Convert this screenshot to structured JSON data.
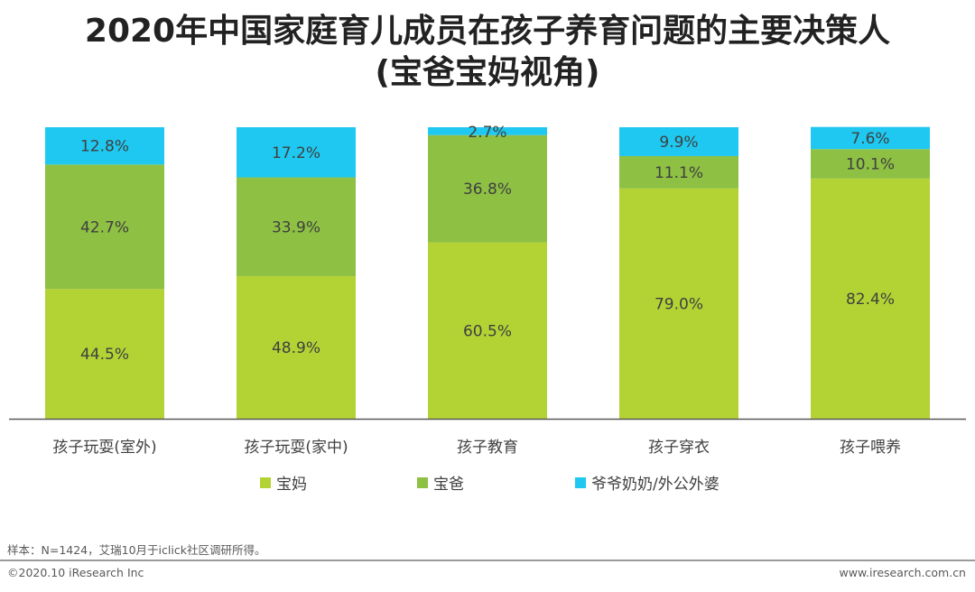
{
  "title": {
    "line1": "2020年中国家庭育儿成员在孩子养育问题的主要决策人",
    "line2": "(宝爸宝妈视角)"
  },
  "chart_data": {
    "type": "bar",
    "stacked": true,
    "categories": [
      "孩子玩耍(室外)",
      "孩子玩耍(家中)",
      "孩子教育",
      "孩子穿衣",
      "孩子喂养"
    ],
    "series": [
      {
        "name": "宝妈",
        "color": "#b3d334",
        "values": [
          44.5,
          48.9,
          60.5,
          79.0,
          82.4
        ],
        "labels": [
          "44.5%",
          "48.9%",
          "60.5%",
          "79.0%",
          "82.4%"
        ]
      },
      {
        "name": "宝爸",
        "color": "#8dc043",
        "values": [
          42.7,
          33.9,
          36.8,
          11.1,
          10.1
        ],
        "labels": [
          "42.7%",
          "33.9%",
          "36.8%",
          "11.1%",
          "10.1%"
        ]
      },
      {
        "name": "爷爷奶奶/外公外婆",
        "color": "#1ec8f0",
        "values": [
          12.8,
          17.2,
          2.7,
          9.9,
          7.6
        ],
        "labels": [
          "12.8%",
          "17.2%",
          "2.7%",
          "9.9%",
          "7.6%"
        ]
      }
    ],
    "ylim": [
      0,
      100
    ],
    "legend_position": "bottom",
    "grid": false
  },
  "footer": {
    "note": "样本：N=1424，艾瑞10月于iclick社区调研所得。",
    "copyright": "©2020.10 iResearch Inc",
    "website": "www.iresearch.com.cn"
  }
}
